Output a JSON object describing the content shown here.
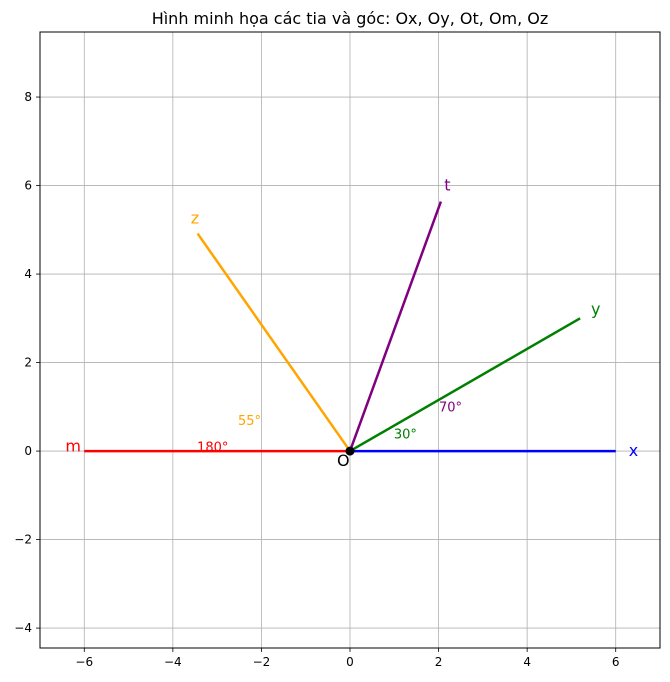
{
  "chart_data": {
    "type": "line",
    "title": "Hình minh họa các tia và góc: Ox, Oy, Ot, Om, Oz",
    "xlabel": "",
    "ylabel": "",
    "xlim": [
      -7,
      7
    ],
    "ylim": [
      -4.45,
      9.47
    ],
    "xticks": [
      -6,
      -4,
      -2,
      0,
      2,
      4,
      6
    ],
    "yticks": [
      -4,
      -2,
      0,
      2,
      4,
      6,
      8
    ],
    "grid": true,
    "origin": {
      "label": "O",
      "x": 0,
      "y": 0,
      "label_x": -0.15,
      "label_y": -0.2
    },
    "rays": [
      {
        "label": "x",
        "color": "#0000ff",
        "end": [
          6,
          0
        ],
        "label_pos": [
          6.4,
          0
        ]
      },
      {
        "label": "y",
        "color": "#008000",
        "end": [
          5.196,
          3.0
        ],
        "label_pos": [
          5.55,
          3.2
        ]
      },
      {
        "label": "t",
        "color": "#800080",
        "end": [
          2.052,
          5.638
        ],
        "label_pos": [
          2.2,
          6.0
        ]
      },
      {
        "label": "z",
        "color": "#ffa500",
        "end": [
          -3.441,
          4.915
        ],
        "label_pos": [
          -3.5,
          5.25
        ]
      },
      {
        "label": "m",
        "color": "#ff0000",
        "end": [
          -6,
          0
        ],
        "label_pos": [
          -6.25,
          0.1
        ]
      }
    ],
    "angle_labels": [
      {
        "text": "30°",
        "color": "#008000",
        "pos": [
          1.25,
          0.38
        ]
      },
      {
        "text": "70°",
        "color": "#800080",
        "pos": [
          2.27,
          0.98
        ]
      },
      {
        "text": "55°",
        "color": "#ffa500",
        "pos": [
          -2.27,
          0.68
        ]
      },
      {
        "text": "180°",
        "color": "#ff0000",
        "pos": [
          -3.1,
          0.08
        ]
      }
    ]
  }
}
